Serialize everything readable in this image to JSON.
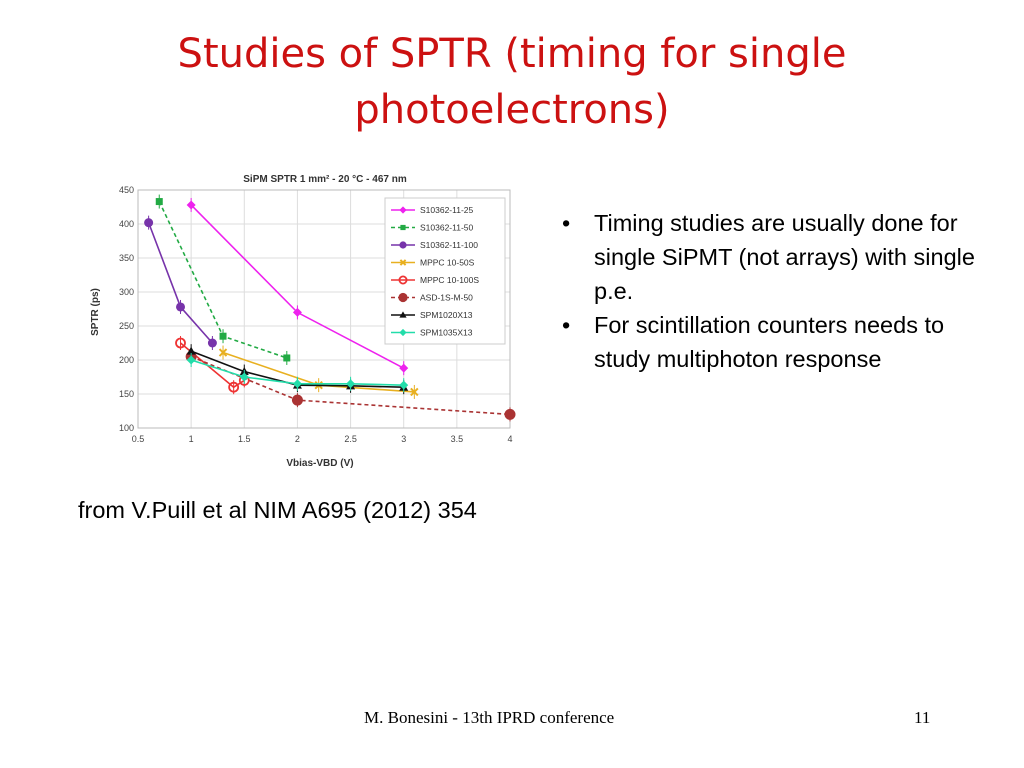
{
  "slide": {
    "title": "Studies of SPTR (timing for single photoelectrons)",
    "bullets": [
      "Timing studies are usually done for single SiPMT (not arrays) with single p.e.",
      "For scintillation counters needs to study multiphoton response"
    ],
    "source": "from V.Puill et al NIM A695 (2012) 354",
    "footer": "M. Bonesini - 13th IPRD conference",
    "page_number": "11"
  },
  "chart_data": {
    "type": "line",
    "title": "SiPM SPTR  1 mm² - 20 °C - 467 nm",
    "xlabel": "Vbias-VBD (V)",
    "ylabel": "SPTR (ps)",
    "xlim": [
      0.5,
      4
    ],
    "ylim": [
      100,
      450
    ],
    "xticks": [
      "0.5",
      "1",
      "1.5",
      "2",
      "2.5",
      "3",
      "3.5",
      "4"
    ],
    "yticks": [
      "100",
      "150",
      "200",
      "250",
      "300",
      "350",
      "400",
      "450"
    ],
    "legend_position": "top-right",
    "series": [
      {
        "name": "S10362-11-25",
        "color": "#ee22ee",
        "marker": "diamond",
        "dash": "solid",
        "x": [
          1.0,
          2.0,
          3.0
        ],
        "y": [
          428,
          270,
          188
        ]
      },
      {
        "name": "S10362-11-50",
        "color": "#22aa44",
        "marker": "square",
        "dash": "dashed",
        "x": [
          0.7,
          1.3,
          1.9
        ],
        "y": [
          433,
          235,
          203
        ]
      },
      {
        "name": "S10362-11-100",
        "color": "#7733aa",
        "marker": "circle",
        "dash": "solid",
        "x": [
          0.6,
          0.9,
          1.2
        ],
        "y": [
          402,
          278,
          225
        ]
      },
      {
        "name": "MPPC 10-50S",
        "color": "#e8b020",
        "marker": "x",
        "dash": "solid",
        "x": [
          1.3,
          2.2,
          3.1
        ],
        "y": [
          211,
          163,
          153
        ]
      },
      {
        "name": "MPPC 10-100S",
        "color": "#ee3333",
        "marker": "open-circle",
        "dash": "solid",
        "x": [
          0.9,
          1.4,
          1.5
        ],
        "y": [
          225,
          160,
          170
        ]
      },
      {
        "name": "ASD-1S-M-50",
        "color": "#aa3333",
        "marker": "big-circle",
        "dash": "dashed",
        "x": [
          1.0,
          2.0,
          4.0
        ],
        "y": [
          205,
          141,
          120
        ]
      },
      {
        "name": "SPM1020X13",
        "color": "#111111",
        "marker": "triangle",
        "dash": "solid",
        "x": [
          1.0,
          1.5,
          2.0,
          2.5,
          3.0
        ],
        "y": [
          213,
          183,
          163,
          162,
          160
        ]
      },
      {
        "name": "SPM1035X13",
        "color": "#22ddaa",
        "marker": "diamond",
        "dash": "solid",
        "x": [
          1.0,
          1.5,
          2.0,
          2.5,
          3.0
        ],
        "y": [
          200,
          175,
          165,
          165,
          163
        ]
      }
    ]
  }
}
